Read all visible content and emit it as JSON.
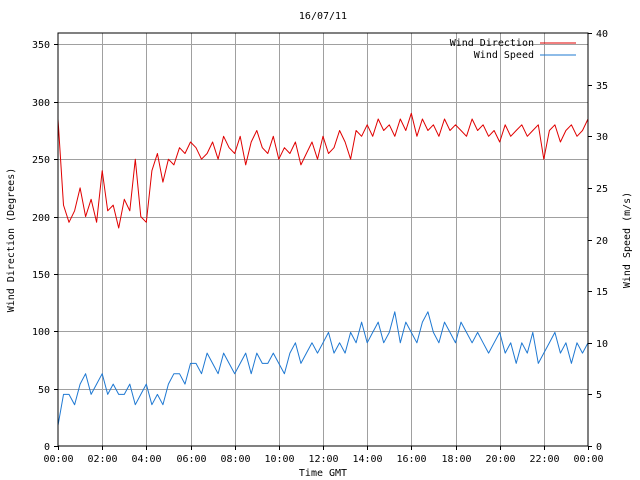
{
  "chart_data": {
    "type": "line",
    "title": "16/07/11",
    "xlabel": "Time GMT",
    "ylabel_left": "Wind Direction (Degrees)",
    "ylabel_right": "Wind Speed (m/s)",
    "x_ticks": [
      "00:00",
      "02:00",
      "04:00",
      "06:00",
      "08:00",
      "10:00",
      "12:00",
      "14:00",
      "16:00",
      "18:00",
      "20:00",
      "22:00",
      "00:00"
    ],
    "y_left_ticks": [
      "0",
      "50",
      "100",
      "150",
      "200",
      "250",
      "300",
      "350"
    ],
    "y_right_ticks": [
      "0",
      "5",
      "10",
      "15",
      "20",
      "25",
      "30",
      "35",
      "40"
    ],
    "xlim_hours": [
      0,
      24
    ],
    "ylim_left": [
      0,
      360
    ],
    "ylim_right": [
      0,
      40
    ],
    "grid": true,
    "legend_position": "top-right",
    "series": [
      {
        "name": "Wind Direction",
        "axis": "left",
        "color": "#e00000",
        "x": [
          0.0,
          0.25,
          0.5,
          0.75,
          1.0,
          1.25,
          1.5,
          1.75,
          2.0,
          2.25,
          2.5,
          2.75,
          3.0,
          3.25,
          3.5,
          3.75,
          4.0,
          4.25,
          4.5,
          4.75,
          5.0,
          5.25,
          5.5,
          5.75,
          6.0,
          6.25,
          6.5,
          6.75,
          7.0,
          7.25,
          7.5,
          7.75,
          8.0,
          8.25,
          8.5,
          8.75,
          9.0,
          9.25,
          9.5,
          9.75,
          10.0,
          10.25,
          10.5,
          10.75,
          11.0,
          11.25,
          11.5,
          11.75,
          12.0,
          12.25,
          12.5,
          12.75,
          13.0,
          13.25,
          13.5,
          13.75,
          14.0,
          14.25,
          14.5,
          14.75,
          15.0,
          15.25,
          15.5,
          15.75,
          16.0,
          16.25,
          16.5,
          16.75,
          17.0,
          17.25,
          17.5,
          17.75,
          18.0,
          18.25,
          18.5,
          18.75,
          19.0,
          19.25,
          19.5,
          19.75,
          20.0,
          20.25,
          20.5,
          20.75,
          21.0,
          21.25,
          21.5,
          21.75,
          22.0,
          22.25,
          22.5,
          22.75,
          23.0,
          23.25,
          23.5,
          23.75,
          24.0
        ],
        "values": [
          285,
          210,
          195,
          205,
          225,
          200,
          215,
          195,
          240,
          205,
          210,
          190,
          215,
          205,
          250,
          200,
          195,
          240,
          255,
          230,
          250,
          245,
          260,
          255,
          265,
          260,
          250,
          255,
          265,
          250,
          270,
          260,
          255,
          270,
          245,
          265,
          275,
          260,
          255,
          270,
          250,
          260,
          255,
          265,
          245,
          255,
          265,
          250,
          270,
          255,
          260,
          275,
          265,
          250,
          275,
          270,
          280,
          270,
          285,
          275,
          280,
          270,
          285,
          275,
          290,
          270,
          285,
          275,
          280,
          270,
          285,
          275,
          280,
          275,
          270,
          285,
          275,
          280,
          270,
          275,
          265,
          280,
          270,
          275,
          280,
          270,
          275,
          280,
          250,
          275,
          280,
          265,
          275,
          280,
          270,
          275,
          285
        ],
        "step_hours": 0.25
      },
      {
        "name": "Wind Speed",
        "axis": "right",
        "color": "#1e78d2",
        "x": [
          0.0,
          0.25,
          0.5,
          0.75,
          1.0,
          1.25,
          1.5,
          1.75,
          2.0,
          2.25,
          2.5,
          2.75,
          3.0,
          3.25,
          3.5,
          3.75,
          4.0,
          4.25,
          4.5,
          4.75,
          5.0,
          5.25,
          5.5,
          5.75,
          6.0,
          6.25,
          6.5,
          6.75,
          7.0,
          7.25,
          7.5,
          7.75,
          8.0,
          8.25,
          8.5,
          8.75,
          9.0,
          9.25,
          9.5,
          9.75,
          10.0,
          10.25,
          10.5,
          10.75,
          11.0,
          11.25,
          11.5,
          11.75,
          12.0,
          12.25,
          12.5,
          12.75,
          13.0,
          13.25,
          13.5,
          13.75,
          14.0,
          14.25,
          14.5,
          14.75,
          15.0,
          15.25,
          15.5,
          15.75,
          16.0,
          16.25,
          16.5,
          16.75,
          17.0,
          17.25,
          17.5,
          17.75,
          18.0,
          18.25,
          18.5,
          18.75,
          19.0,
          19.25,
          19.5,
          19.75,
          20.0,
          20.25,
          20.5,
          20.75,
          21.0,
          21.25,
          21.5,
          21.75,
          22.0,
          22.25,
          22.5,
          22.75,
          23.0,
          23.25,
          23.5,
          23.75,
          24.0
        ],
        "values": [
          2,
          5,
          5,
          4,
          6,
          7,
          5,
          6,
          7,
          5,
          6,
          5,
          5,
          6,
          4,
          5,
          6,
          4,
          5,
          4,
          6,
          7,
          7,
          6,
          8,
          8,
          7,
          9,
          8,
          7,
          9,
          8,
          7,
          8,
          9,
          7,
          9,
          8,
          8,
          9,
          8,
          7,
          9,
          10,
          8,
          9,
          10,
          9,
          10,
          11,
          9,
          10,
          9,
          11,
          10,
          12,
          10,
          11,
          12,
          10,
          11,
          13,
          10,
          12,
          11,
          10,
          12,
          13,
          11,
          10,
          12,
          11,
          10,
          12,
          11,
          10,
          11,
          10,
          9,
          10,
          11,
          9,
          10,
          8,
          10,
          9,
          11,
          8,
          9,
          10,
          11,
          9,
          10,
          8,
          10,
          9,
          10
        ],
        "step_hours": 0.25
      }
    ]
  }
}
